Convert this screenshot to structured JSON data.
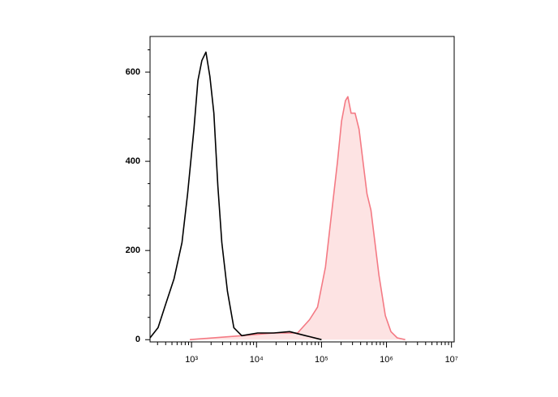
{
  "chart_data": {
    "type": "line",
    "x_scale": "log",
    "xlim": [
      230,
      11000000
    ],
    "ylim": [
      -5,
      680
    ],
    "xticks": [
      {
        "value": 1000,
        "label": "10³"
      },
      {
        "value": 10000,
        "label": "10⁴"
      },
      {
        "value": 100000,
        "label": "10⁵"
      },
      {
        "value": 1000000,
        "label": "10⁶"
      },
      {
        "value": 10000000,
        "label": "10⁷"
      }
    ],
    "yticks": [
      0,
      200,
      400,
      600
    ],
    "series": [
      {
        "color": "#f47a84",
        "fill": "#fde3e3",
        "x": [
          944,
          5927,
          18350,
          42800,
          65500,
          86900,
          115000,
          140000,
          176000,
          203000,
          233000,
          254000,
          285000,
          328000,
          378000,
          435000,
          501000,
          577000,
          664000,
          764000,
          959000,
          1168000,
          1465000,
          1942000
        ],
        "values": [
          0,
          9,
          15,
          15,
          45,
          73,
          163,
          272,
          399,
          490,
          536,
          545,
          508,
          508,
          472,
          399,
          327,
          290,
          218,
          145,
          54,
          18,
          4,
          0
        ]
      },
      {
        "color": "#000000",
        "fill": null,
        "x": [
          230,
          306,
          405,
          537,
          713,
          869,
          1088,
          1254,
          1444,
          1664,
          1915,
          2207,
          2541,
          2927,
          3565,
          4469,
          5927,
          10420,
          18350,
          32300,
          56900,
          100000
        ],
        "values": [
          4,
          27,
          82,
          136,
          218,
          327,
          472,
          581,
          626,
          645,
          590,
          508,
          345,
          218,
          109,
          27,
          9,
          15,
          15,
          18,
          9,
          0
        ]
      }
    ]
  }
}
